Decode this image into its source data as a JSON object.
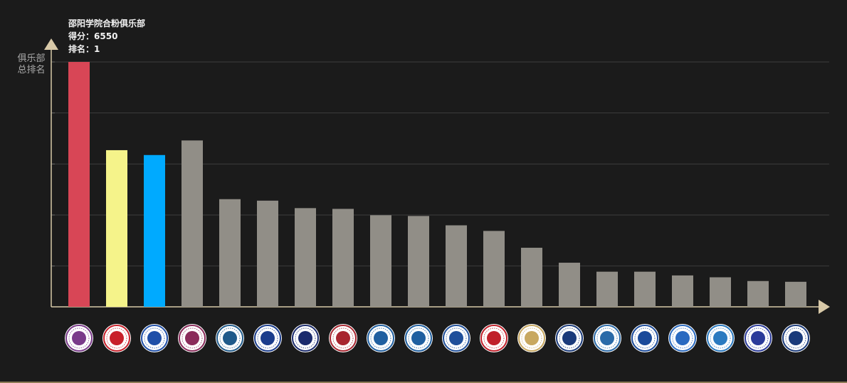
{
  "chart_data": {
    "type": "bar",
    "ylabel": [
      "俱乐部",
      "总排名"
    ],
    "ylim": [
      0,
      6550
    ],
    "grid": true,
    "categories": [
      "邵阳学院合粉俱乐部",
      "",
      "",
      "",
      "",
      "",
      "",
      "",
      "",
      "",
      "",
      "",
      "",
      "",
      "",
      "",
      "",
      "",
      "",
      "",
      ""
    ],
    "values": [
      6550,
      4190,
      4060,
      4450,
      2880,
      2840,
      2640,
      2620,
      2450,
      2430,
      2180,
      2030,
      1580,
      1180,
      940,
      940,
      840,
      790,
      690,
      670,
      0
    ],
    "colors": [
      "#d84656",
      "#f5f38a",
      "#00aaff",
      "#918e87",
      "#918e87",
      "#918e87",
      "#918e87",
      "#918e87",
      "#918e87",
      "#918e87",
      "#918e87",
      "#918e87",
      "#918e87",
      "#918e87",
      "#918e87",
      "#918e87",
      "#918e87",
      "#918e87",
      "#918e87",
      "#918e87",
      "#918e87"
    ],
    "logo_colors": [
      "#7a3a8a",
      "#c8202a",
      "#1f4fa8",
      "#8a2b5a",
      "#1f5a8a",
      "#1a3c8c",
      "#1a2a6c",
      "#a8252f",
      "#1f5fa0",
      "#1f5fa0",
      "#1f4f9a",
      "#c0202a",
      "#c8a860",
      "#1a3a7a",
      "#2a6aa8",
      "#1a4a9a",
      "#2a6ac0",
      "#2a7ac0",
      "#2a3a9a",
      "#1a3a7a"
    ]
  },
  "tooltip": {
    "name": "邵阳学院合粉俱乐部",
    "score_label": "得分：",
    "score_value": "6550",
    "rank_label": "排名：",
    "rank_value": "1"
  }
}
